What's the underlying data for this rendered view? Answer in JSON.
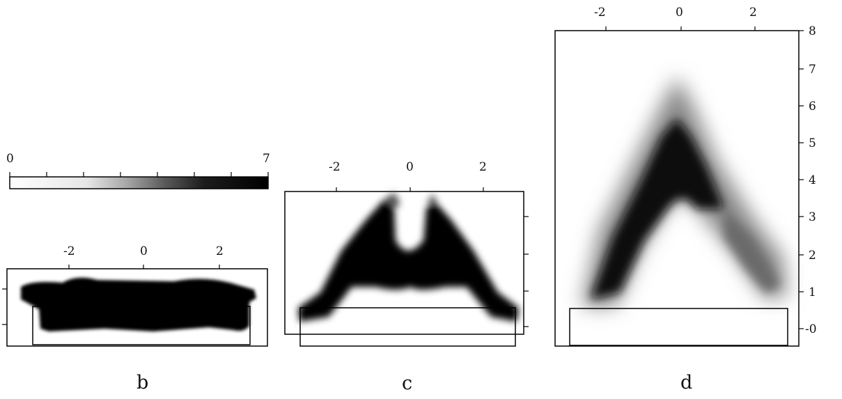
{
  "colorbar": {
    "min_label": "0",
    "max_label": "7",
    "range": [
      0,
      7
    ],
    "gradient": [
      "#ffffff",
      "#e6e6e6",
      "#a8a8a8",
      "#5a5a5a",
      "#1c1c1c",
      "#000000"
    ]
  },
  "panels": [
    {
      "id": "b",
      "label": "b",
      "x_ticks": [
        "-2",
        "0",
        "2"
      ],
      "y_ticks": []
    },
    {
      "id": "c",
      "label": "c",
      "x_ticks": [
        "-2",
        "0",
        "2"
      ],
      "y_ticks": []
    },
    {
      "id": "d",
      "label": "d",
      "x_ticks": [
        "-2",
        "0",
        "2"
      ],
      "y_ticks": [
        "8",
        "7",
        "6",
        "5",
        "4",
        "3",
        "2",
        "1",
        "-0"
      ]
    }
  ]
}
